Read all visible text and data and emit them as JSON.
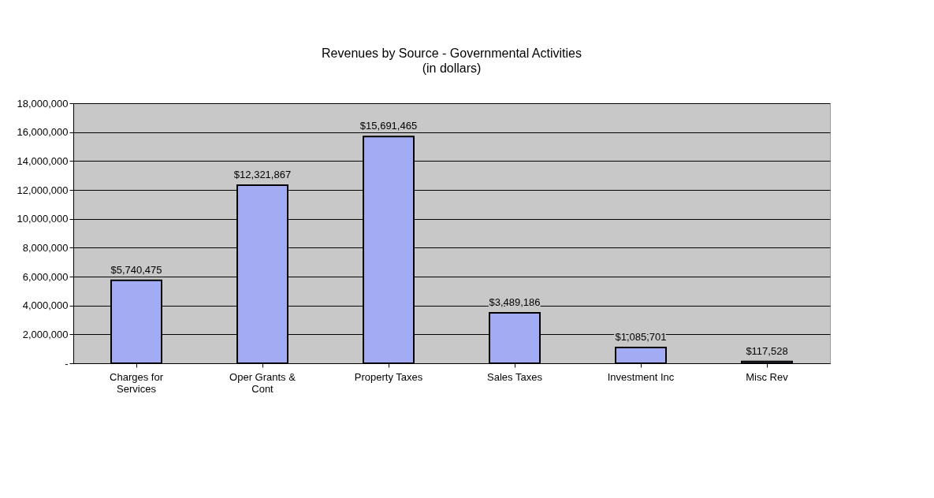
{
  "chart_data": {
    "type": "bar",
    "title": "Revenues by Source - Governmental Activities",
    "subtitle": "(in dollars)",
    "categories": [
      "Charges for\nServices",
      "Oper Grants &\nCont",
      "Property Taxes",
      "Sales Taxes",
      "Investment Inc",
      "Misc Rev"
    ],
    "values": [
      5740475,
      12321867,
      15691465,
      3489186,
      1085701,
      117528
    ],
    "value_labels": [
      "$5,740,475",
      "$12,321,867",
      "$15,691,465",
      "$3,489,186",
      "$1,085,701",
      "$117,528"
    ],
    "color": "#a3acf2",
    "ylim": [
      0,
      18000000
    ],
    "yticks": [
      {
        "value": 0,
        "label": "-"
      },
      {
        "value": 2000000,
        "label": "2,000,000"
      },
      {
        "value": 4000000,
        "label": "4,000,000"
      },
      {
        "value": 6000000,
        "label": "6,000,000"
      },
      {
        "value": 8000000,
        "label": "8,000,000"
      },
      {
        "value": 10000000,
        "label": "10,000,000"
      },
      {
        "value": 12000000,
        "label": "12,000,000"
      },
      {
        "value": 14000000,
        "label": "14,000,000"
      },
      {
        "value": 16000000,
        "label": "16,000,000"
      },
      {
        "value": 18000000,
        "label": "18,000,000"
      }
    ],
    "grid": "y"
  }
}
